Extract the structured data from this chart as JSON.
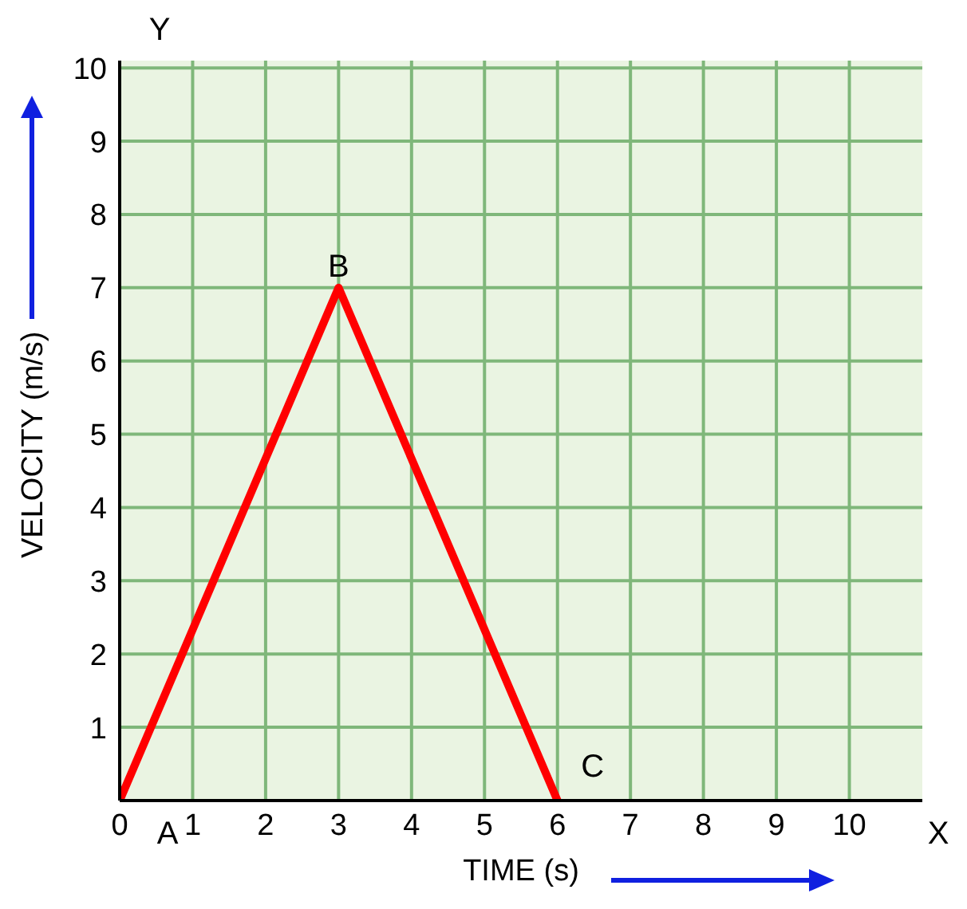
{
  "chart_data": {
    "type": "line",
    "xlabel": "TIME (s)",
    "ylabel": "VELOCITY  (m/s)",
    "x": [
      0,
      3,
      6
    ],
    "series": [
      {
        "color": "#ff0000",
        "values": [
          0,
          7,
          0
        ]
      }
    ],
    "xlim": [
      0,
      11
    ],
    "ylim": [
      0,
      10.1
    ],
    "xticks": [
      0,
      1,
      2,
      3,
      4,
      5,
      6,
      7,
      8,
      9,
      10
    ],
    "yticks": [
      1,
      2,
      3,
      4,
      5,
      6,
      7,
      8,
      9,
      10
    ],
    "grid": true,
    "marker": "none",
    "line_style": "solid",
    "annotations": [
      "X",
      "Y",
      {
        "text": "A",
        "x": 0,
        "y": 0
      },
      {
        "text": "B",
        "x": 3,
        "y": 7
      },
      {
        "text": "C",
        "x": 6,
        "y": 0
      }
    ]
  }
}
